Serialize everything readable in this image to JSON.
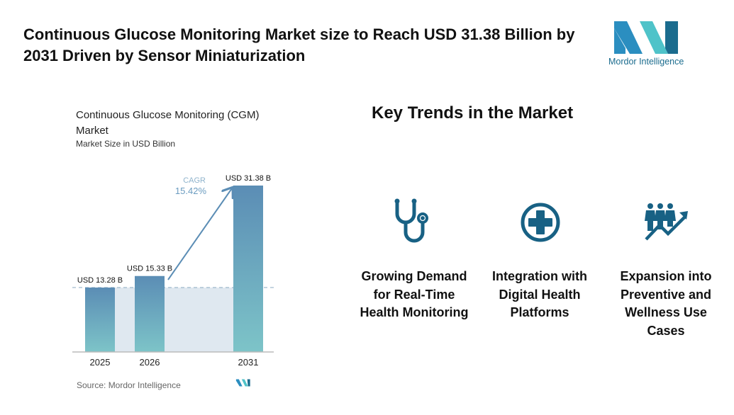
{
  "header": {
    "title": "Continuous Glucose Monitoring Market size to Reach USD 31.38 Billion by 2031 Driven by Sensor Miniaturization",
    "logo_text": "Mordor Intelligence"
  },
  "chart_data": {
    "type": "bar",
    "title": "Continuous Glucose Monitoring (CGM) Market",
    "subtitle": "Market Size in USD Billion",
    "categories": [
      "2025",
      "2026",
      "2031"
    ],
    "values": [
      13.28,
      15.33,
      31.38
    ],
    "data_labels": [
      "USD 13.28 B",
      "USD 15.33 B",
      "USD 31.38 B"
    ],
    "annotation": {
      "label": "CAGR",
      "value": "15.42%"
    },
    "source": "Source: Mordor Intelligence",
    "colors": {
      "bar_top": "#5b8db5",
      "bar_bottom": "#7dc4c8",
      "band": "#dfe8f0",
      "arrow": "#5b8db5"
    }
  },
  "trends": {
    "heading": "Key Trends in the Market",
    "icon_color": "#186184",
    "items": [
      {
        "icon": "stethoscope-icon",
        "label": "Growing Demand for Real-Time Health Monitoring"
      },
      {
        "icon": "medical-cross-icon",
        "label": "Integration with Digital Health Platforms"
      },
      {
        "icon": "people-growth-icon",
        "label": "Expansion into Preventive and Wellness Use Cases"
      }
    ]
  }
}
